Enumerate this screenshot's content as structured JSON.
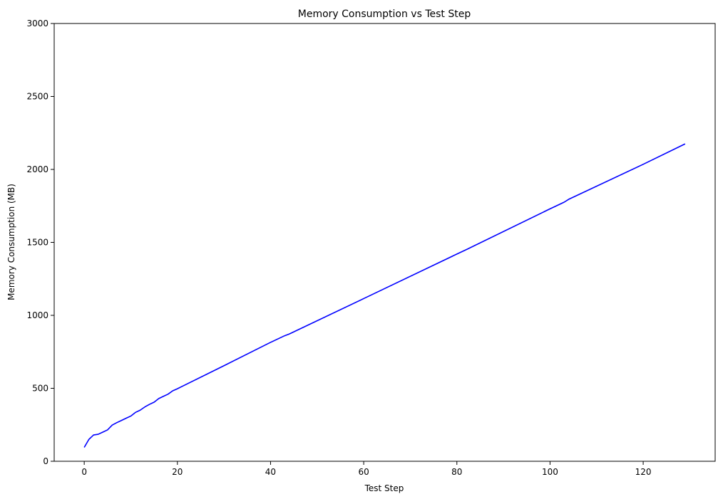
{
  "chart_data": {
    "type": "line",
    "title": "Memory Consumption vs Test Step",
    "xlabel": "Test Step",
    "ylabel": "Memory Consumption (MB)",
    "xlim": [
      -6.45,
      135.45
    ],
    "ylim": [
      0,
      3000
    ],
    "xticks": [
      0,
      20,
      40,
      60,
      80,
      100,
      120
    ],
    "yticks": [
      0,
      500,
      1000,
      1500,
      2000,
      2500,
      3000
    ],
    "grid": false,
    "line_color": "#0000ff",
    "series": [
      {
        "x": [
          0,
          1,
          2,
          3,
          4,
          5,
          6,
          7,
          8,
          9,
          10,
          11,
          12,
          13,
          14,
          15,
          16,
          17,
          18,
          19,
          20,
          30,
          40,
          43,
          44,
          60,
          80,
          82,
          100,
          103,
          104,
          120,
          129
        ],
        "y": [
          95,
          150,
          180,
          185,
          200,
          215,
          248,
          265,
          280,
          295,
          310,
          335,
          350,
          372,
          390,
          405,
          430,
          445,
          460,
          483,
          497,
          655,
          815,
          860,
          872,
          1115,
          1420,
          1450,
          1730,
          1775,
          1795,
          2035,
          2175
        ]
      }
    ]
  }
}
